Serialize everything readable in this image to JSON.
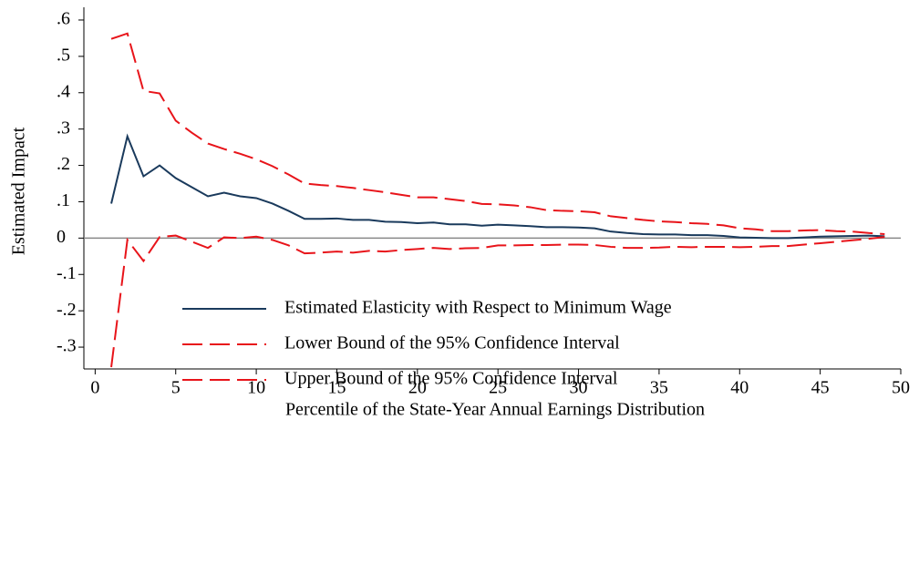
{
  "chart_data": {
    "type": "line",
    "xlabel": "Percentile of the State-Year Annual Earnings Distribution",
    "ylabel": "Estimated Impact",
    "x": [
      1,
      2,
      3,
      4,
      5,
      6,
      7,
      8,
      9,
      10,
      11,
      12,
      13,
      14,
      15,
      16,
      17,
      18,
      19,
      20,
      21,
      22,
      23,
      24,
      25,
      26,
      27,
      28,
      29,
      30,
      31,
      32,
      33,
      34,
      35,
      36,
      37,
      38,
      39,
      40,
      41,
      42,
      43,
      44,
      45,
      46,
      47,
      48,
      49
    ],
    "series": [
      {
        "name": "Estimated Elasticity with Respect to Minimum Wage",
        "color": "#1a3a5c",
        "dash": false,
        "values": [
          0.095,
          0.28,
          0.17,
          0.2,
          0.165,
          0.14,
          0.115,
          0.125,
          0.115,
          0.11,
          0.095,
          0.075,
          0.053,
          0.053,
          0.054,
          0.05,
          0.05,
          0.045,
          0.044,
          0.041,
          0.043,
          0.038,
          0.038,
          0.034,
          0.037,
          0.035,
          0.033,
          0.03,
          0.03,
          0.029,
          0.027,
          0.018,
          0.014,
          0.011,
          0.01,
          0.01,
          0.008,
          0.008,
          0.006,
          0.002,
          0.001,
          0,
          0,
          0.002,
          0.004,
          0.005,
          0.006,
          0.007,
          0.005
        ]
      },
      {
        "name": "Lower Bound of the 95% Confidence Interval",
        "color": "#e8141a",
        "dash": true,
        "values": [
          -0.355,
          -0.005,
          -0.063,
          0.003,
          0.007,
          -0.01,
          -0.027,
          0.002,
          0,
          0.004,
          -0.005,
          -0.02,
          -0.042,
          -0.04,
          -0.037,
          -0.04,
          -0.035,
          -0.037,
          -0.033,
          -0.03,
          -0.027,
          -0.03,
          -0.028,
          -0.027,
          -0.02,
          -0.02,
          -0.019,
          -0.019,
          -0.018,
          -0.018,
          -0.019,
          -0.024,
          -0.027,
          -0.027,
          -0.026,
          -0.024,
          -0.025,
          -0.024,
          -0.024,
          -0.025,
          -0.024,
          -0.022,
          -0.022,
          -0.018,
          -0.014,
          -0.01,
          -0.006,
          -0.002,
          0.003
        ]
      },
      {
        "name": "Upper Bound of the 95% Confidence Interval",
        "color": "#e8141a",
        "dash": true,
        "values": [
          0.548,
          0.563,
          0.405,
          0.398,
          0.323,
          0.29,
          0.26,
          0.245,
          0.232,
          0.217,
          0.198,
          0.175,
          0.15,
          0.146,
          0.143,
          0.138,
          0.132,
          0.126,
          0.119,
          0.112,
          0.112,
          0.107,
          0.102,
          0.094,
          0.093,
          0.09,
          0.085,
          0.077,
          0.075,
          0.074,
          0.071,
          0.06,
          0.055,
          0.05,
          0.046,
          0.044,
          0.041,
          0.039,
          0.035,
          0.027,
          0.024,
          0.019,
          0.019,
          0.021,
          0.022,
          0.019,
          0.018,
          0.014,
          0.011
        ]
      }
    ],
    "xlim": [
      -0.7,
      50
    ],
    "xticks": [
      0,
      5,
      10,
      15,
      20,
      25,
      30,
      35,
      40,
      45,
      50
    ],
    "ylim": [
      -0.36,
      0.635
    ],
    "yticks": [
      {
        "value": 0.6,
        "label": ".6"
      },
      {
        "value": 0.5,
        "label": ".5"
      },
      {
        "value": 0.4,
        "label": ".4"
      },
      {
        "value": 0.3,
        "label": ".3"
      },
      {
        "value": 0.2,
        "label": ".2"
      },
      {
        "value": 0.1,
        "label": ".1"
      },
      0,
      {
        "value": -0.1,
        "label": "-.1"
      },
      {
        "value": -0.2,
        "label": "-.2"
      },
      {
        "value": -0.3,
        "label": "-.3"
      }
    ],
    "reference_line": 0,
    "legend": "bottom"
  }
}
